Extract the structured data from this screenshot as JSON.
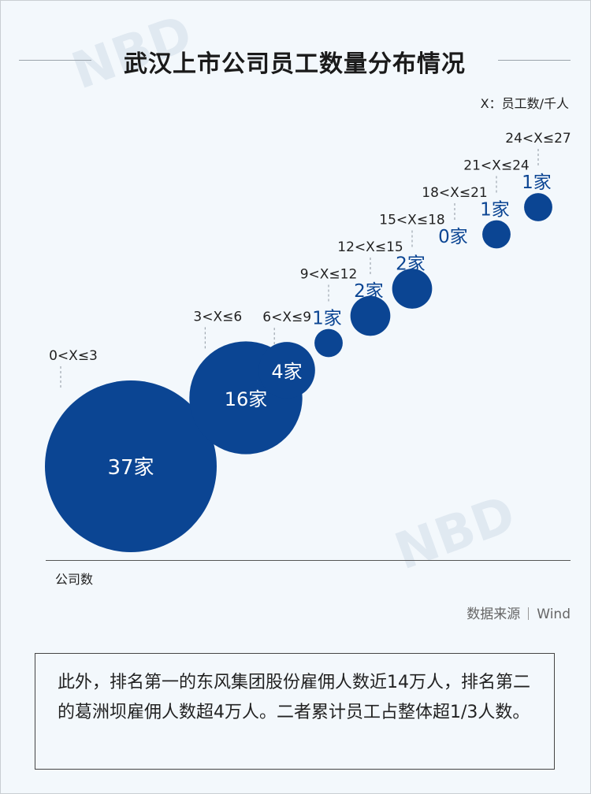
{
  "title": "武汉上市公司员工数量分布情况",
  "unit_note": "X：员工数/千人",
  "y_label": "公司数",
  "source": {
    "label": "数据来源",
    "value": "Wind"
  },
  "note": "此外，排名第一的东风集团股份雇佣人数近14万人，排名第二的葛洲坝雇佣人数超4万人。二者累计员工占整体超1/3人数。",
  "watermark_text": "NBD",
  "colors": {
    "bubble": "#0b4593",
    "label_dark": "#0b4593",
    "label_light": "#ffffff",
    "dash": "#8c96a0"
  },
  "chart_data": {
    "type": "bubble",
    "x_label": "X：员工数/千人",
    "y_label": "公司数",
    "categories": [
      "0<X≤3",
      "3<X≤6",
      "6<X≤9",
      "9<X≤12",
      "12<X≤15",
      "15<X≤18",
      "18<X≤21",
      "21<X≤24",
      "24<X≤27"
    ],
    "values": [
      37,
      16,
      4,
      1,
      2,
      2,
      0,
      1,
      1
    ],
    "value_labels": [
      "37家",
      "16家",
      "4家",
      "1家",
      "2家",
      "2家",
      "0家",
      "1家",
      "1家"
    ]
  }
}
